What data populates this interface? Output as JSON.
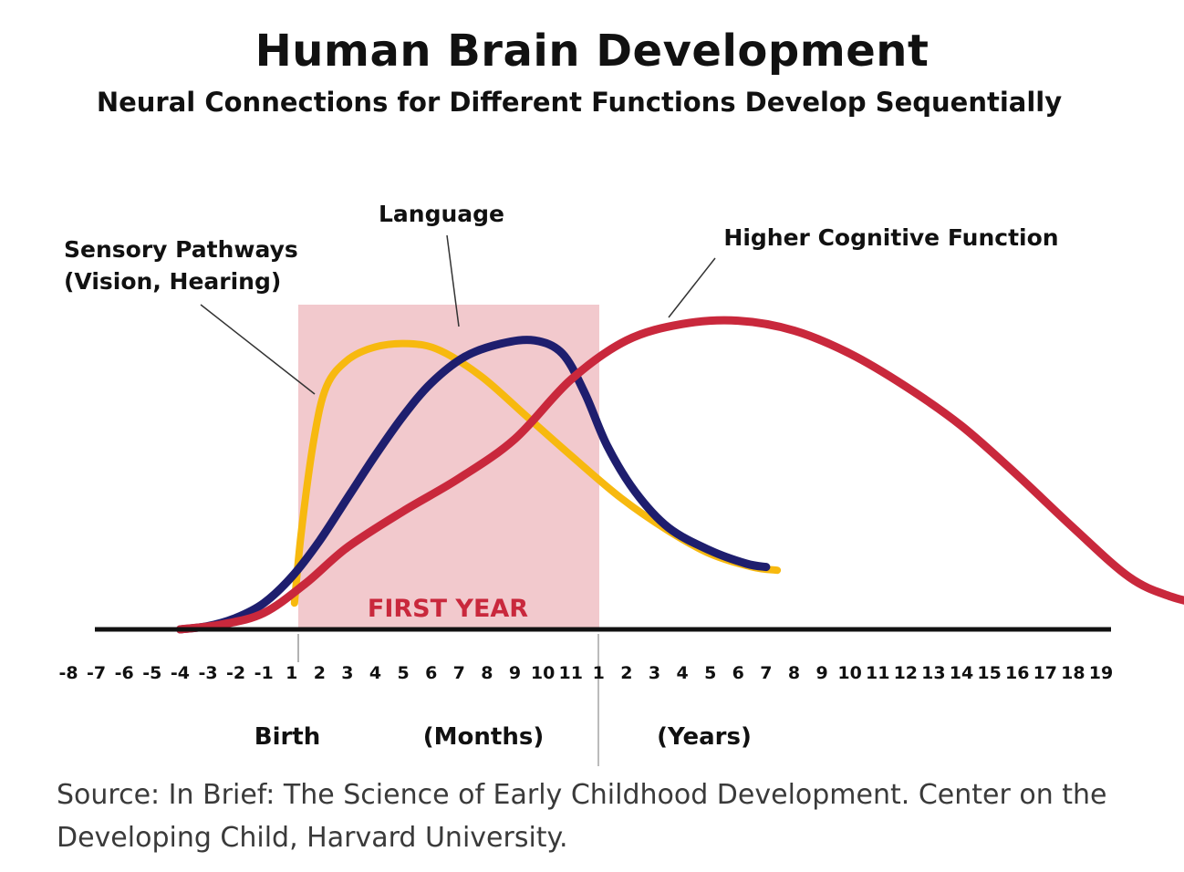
{
  "title": "Human Brain Development",
  "subtitle": "Neural Connections for Different Functions Develop Sequentially",
  "source": "Source: In Brief: The Science of Early Childhood Development. Center on the Developing Child, Harvard University.",
  "colors": {
    "sensory": "#f7b90f",
    "language": "#1e1e6e",
    "cognitive": "#c9283c",
    "first_year_band": "#f2c9cd",
    "first_year_text": "#c9283c",
    "axis": "#111111"
  },
  "chart_data": {
    "type": "line",
    "title": "Human Brain Development",
    "subtitle": "Neural Connections for Different Functions Develop Sequentially",
    "x_ticks": [
      "-8",
      "-7",
      "-6",
      "-5",
      "-4",
      "-3",
      "-2",
      "-1",
      "1",
      "2",
      "3",
      "4",
      "5",
      "6",
      "7",
      "8",
      "9",
      "10",
      "11",
      "1",
      "2",
      "3",
      "4",
      "5",
      "6",
      "7",
      "8",
      "9",
      "10",
      "11",
      "12",
      "13",
      "14",
      "15",
      "16",
      "17",
      "18",
      "19"
    ],
    "axis_labels": {
      "birth": "Birth",
      "months": "(Months)",
      "years": "(Years)"
    },
    "first_year_label": "FIRST YEAR",
    "first_year_span": [
      0,
      19
    ],
    "ylim": [
      0,
      100
    ],
    "y_axis_shown": false,
    "grid": false,
    "series": [
      {
        "key": "sensory",
        "name": "Sensory Pathways (Vision, Hearing)",
        "points": [
          [
            0.1,
            8
          ],
          [
            0.35,
            30
          ],
          [
            0.8,
            58
          ],
          [
            1.25,
            74
          ],
          [
            2.0,
            82
          ],
          [
            3.0,
            86
          ],
          [
            4.2,
            87
          ],
          [
            5.3,
            85
          ],
          [
            6.8,
            77
          ],
          [
            8.4,
            65
          ],
          [
            10.0,
            53
          ],
          [
            11.8,
            40
          ],
          [
            13.5,
            30
          ],
          [
            15.0,
            23
          ],
          [
            16.5,
            19
          ],
          [
            17.4,
            18
          ]
        ]
      },
      {
        "key": "language",
        "name": "Language",
        "points": [
          [
            -4.0,
            0
          ],
          [
            -3.0,
            1
          ],
          [
            -2.0,
            3.5
          ],
          [
            -1.0,
            8
          ],
          [
            0.0,
            16
          ],
          [
            1.0,
            27
          ],
          [
            2.0,
            40
          ],
          [
            3.0,
            53
          ],
          [
            4.0,
            65
          ],
          [
            5.0,
            75
          ],
          [
            6.2,
            83
          ],
          [
            7.5,
            87
          ],
          [
            8.7,
            88
          ],
          [
            9.7,
            84
          ],
          [
            10.5,
            72
          ],
          [
            11.3,
            56
          ],
          [
            12.3,
            42
          ],
          [
            13.5,
            31
          ],
          [
            15.0,
            24
          ],
          [
            16.3,
            20
          ],
          [
            17.0,
            19
          ]
        ]
      },
      {
        "key": "cognitive",
        "name": "Higher Cognitive Function",
        "points": [
          [
            -4.0,
            0
          ],
          [
            -2.5,
            1.5
          ],
          [
            -1.0,
            5
          ],
          [
            0.5,
            14
          ],
          [
            2.0,
            25
          ],
          [
            4.0,
            36
          ],
          [
            6.0,
            46
          ],
          [
            8.0,
            58
          ],
          [
            10.0,
            76
          ],
          [
            12.0,
            88
          ],
          [
            14.0,
            93
          ],
          [
            16.0,
            94
          ],
          [
            18.0,
            91
          ],
          [
            20.0,
            84
          ],
          [
            22.0,
            74
          ],
          [
            24.0,
            62
          ],
          [
            26.0,
            47
          ],
          [
            28.0,
            31
          ],
          [
            30.0,
            16
          ],
          [
            31.5,
            10
          ],
          [
            33.0,
            7
          ],
          [
            34.0,
            5.5
          ]
        ]
      }
    ]
  }
}
